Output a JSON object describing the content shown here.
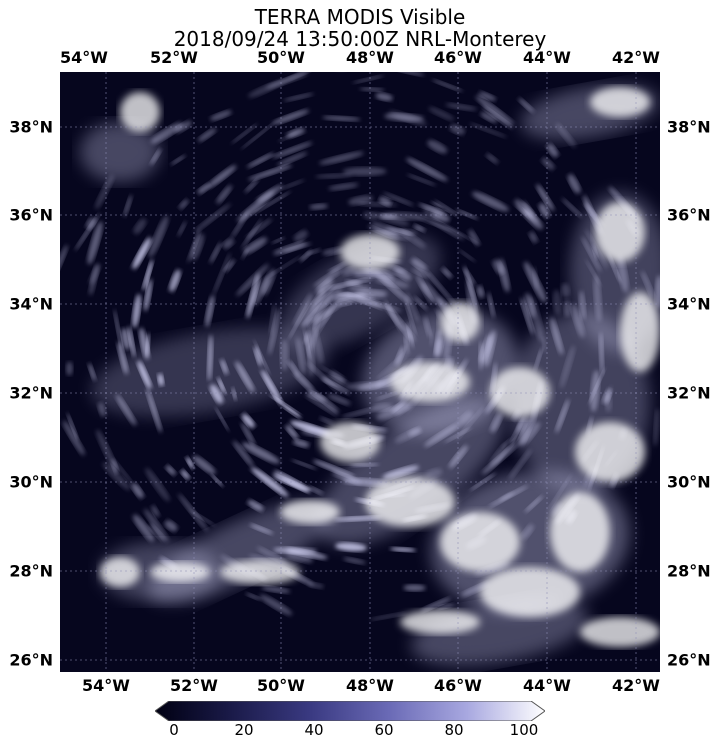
{
  "title": {
    "line1": "TERRA MODIS Visible",
    "line2": "2018/09/24 13:50:00Z NRL-Monterey"
  },
  "longitude_labels": [
    "54°W",
    "52°W",
    "50°W",
    "48°W",
    "46°W",
    "44°W",
    "42°W"
  ],
  "latitude_labels": [
    "38°N",
    "36°N",
    "34°N",
    "32°N",
    "30°N",
    "28°N",
    "26°N"
  ],
  "colorbar": {
    "ticks": [
      "0",
      "20",
      "40",
      "60",
      "80",
      "100"
    ],
    "colors": [
      "#000012",
      "#1b1b4a",
      "#3a3a82",
      "#6a6ab6",
      "#a8a8e0",
      "#ffffff"
    ]
  },
  "map": {
    "ocean_color": "#06061e",
    "cloud_color": "#dcdcff",
    "grid_color": "#9090b8"
  }
}
